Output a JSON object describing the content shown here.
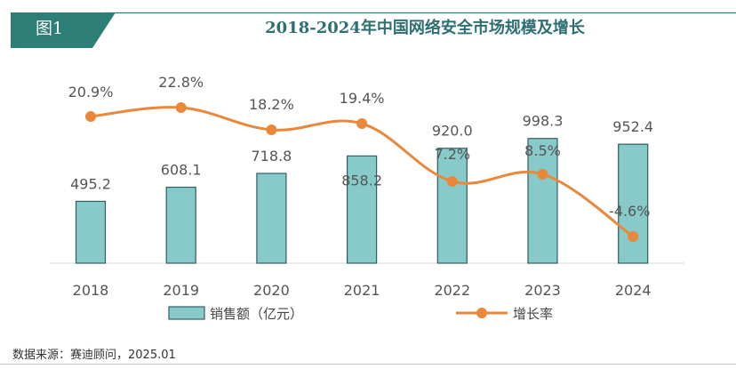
{
  "figure_label": "图1",
  "source": "数据来源：赛迪顾问，2025.01",
  "colors": {
    "bar_fill": "#88c9c9",
    "bar_stroke": "#2f5f63",
    "line": "#e9883a",
    "tab": "#2e7e78",
    "title": "#2e6f72"
  },
  "chart_data": {
    "type": "bar",
    "title": "2018-2024年中国网络安全市场规模及增长",
    "categories": [
      "2018",
      "2019",
      "2020",
      "2021",
      "2022",
      "2023",
      "2024"
    ],
    "series": [
      {
        "name": "销售额（亿元）",
        "type": "bar",
        "values": [
          495.2,
          608.1,
          718.8,
          858.2,
          920.0,
          998.3,
          952.4
        ],
        "labels": [
          "495.2",
          "608.1",
          "718.8",
          "858.2",
          "920.0",
          "998.3",
          "952.4"
        ]
      },
      {
        "name": "增长率",
        "type": "line",
        "values": [
          20.9,
          22.8,
          18.2,
          19.4,
          7.2,
          8.5,
          -4.6
        ],
        "labels": [
          "20.9%",
          "22.8%",
          "18.2%",
          "19.4%",
          "7.2%",
          "8.5%",
          "-4.6%"
        ]
      }
    ],
    "legend_position": "bottom",
    "grid": false
  }
}
